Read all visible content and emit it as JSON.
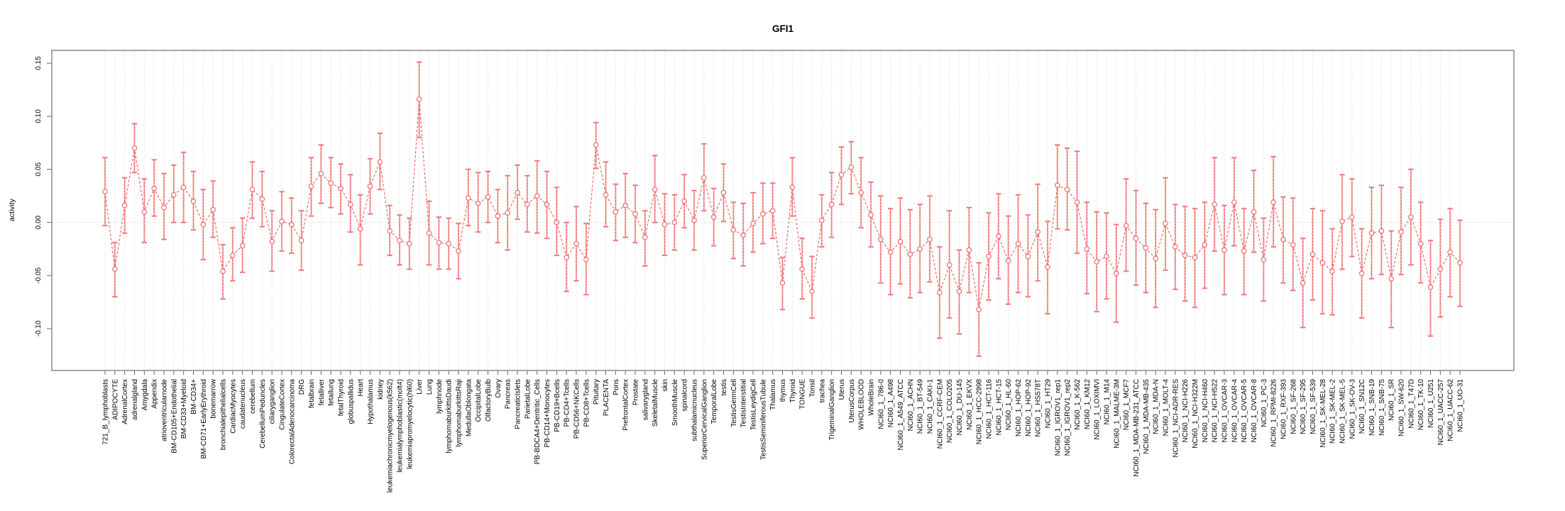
{
  "chart_data": {
    "type": "line",
    "title": "GFI1",
    "ylabel": "activity",
    "xlabel": "",
    "ylim": [
      -0.13,
      0.16
    ],
    "ytick_values": [
      0.15,
      0.1,
      0.05,
      0.0,
      -0.05,
      -0.1
    ],
    "ytick_labels": [
      "0.15",
      "0.10",
      "0.05",
      "0.00",
      "-0.05",
      "-0.10"
    ],
    "grid": "vertical dotted gridline per category; dotted horizontal line at 0",
    "legend_position": "none",
    "marker": "open-circle",
    "line_style": "dashed",
    "colors": {
      "series": "#ee5f5f",
      "errorbar_light": "#f5abab",
      "gridline": "#d9d9d9",
      "zero_line": "#d0d0d0",
      "plot_border": "#8a8a8a",
      "tick": "#666666"
    },
    "categories": [
      "721_B_lymphoblasts",
      "ADIPOCYTE",
      "AdrenalCortex",
      "adrenalgland",
      "Amygdala",
      "Appendix",
      "atrioventricularnode",
      "BM-CD105+Endothelial",
      "BM-CD33+Myeloid",
      "BM-CD34+",
      "BM-CD71+EarlyErythroid",
      "bonemarrow",
      "bronchialepithelialcells",
      "CardiacMyocytes",
      "caudatenucleus",
      "cerebellum",
      "CerebellumPeduncles",
      "ciliaryganglion",
      "CingulateCortex",
      "ColorectalAdenocarcinoma",
      "DRG",
      "fetalbrain",
      "fetalliver",
      "fetallung",
      "fetalThyroid",
      "globuspallidus",
      "Heart",
      "Hypothalamus",
      "kidney",
      "leukemiachronicmyelogenous(k562)",
      "leukemialymphoblastic(molt4)",
      "leukemiapromyelocytic(hl60)",
      "Liver",
      "Lung",
      "lymphnode",
      "lymphomaburkittsDaudi",
      "lymphomaburkittsRaji",
      "MedullaOblongata",
      "OccipitalLobe",
      "OlfactoryBulb",
      "Ovary",
      "Pancreas",
      "PancreaticIslets",
      "ParietalLobe",
      "PB-BDCA4+Dentritic_Cells",
      "PB-CD14+Monocytes",
      "PB-CD19+Bcells",
      "PB-CD4+Tcells",
      "PB-CD56+NKCells",
      "PB-CD8+Tcells",
      "Pituitary",
      "PLACENTA",
      "Pons",
      "PrefrontalCortex",
      "Prostate",
      "salivarygland",
      "SkeletalMuscle",
      "skin",
      "SmoothMuscle",
      "spinalcord",
      "subthalamicnucleus",
      "SuperiorCervicalGanglion",
      "TemporalLobe",
      "testis",
      "TestisGermCell",
      "TestisInterstitial",
      "TestisLeydigCell",
      "TestisSeminiferousTubule",
      "Thalamus",
      "thymus",
      "Thyroid",
      "TONGUE",
      "Tonsil",
      "trachea",
      "TrigeminalGanglion",
      "Uterus",
      "UterusCorpus",
      "WHOLEBLOOD",
      "WholeBrain",
      "NCI60_1_786-0",
      "NCI60_1_A498",
      "NCI60_1_A549_ATCC",
      "NCI60_1_ACHN",
      "NCI60_1_BT-549",
      "NCI60_1_CAKI-1",
      "NCI60_1_CCRF-CEM",
      "NCI60_1_COLO205",
      "NCI60_1_DU-145",
      "NCI60_1_EKVX",
      "NCI60_1_HCC-2998",
      "NCI60_1_HCT-116",
      "NCI60_1_HCT-15",
      "NCI60_1_HL-60",
      "NCI60_1_HOP-62",
      "NCI60_1_HOP-92",
      "NCI60_1_HS578T",
      "NCI60_1_HT29",
      "NCI60_1_IGROV1_rep1",
      "NCI60_1_IGROV1_rep2",
      "NCI60_1_K-562",
      "NCI60_1_KM12",
      "NCI60_1_LOXIMVI",
      "NCI60_1_M14",
      "NCI60_1_MALME-3M",
      "NCI60_1_MCF7",
      "NCI60_1_MDA-MB-231_ATCC",
      "NCI60_1_MDA-MB-435",
      "NCI60_1_MDA-N",
      "NCI60_1_MOLT-4",
      "NCI60_1_NCI-ADR-RES",
      "NCI60_1_NCI-H226",
      "NCI60_1_NCI-H322M",
      "NCI60_1_NCI-H460",
      "NCI60_1_NCI-H522",
      "NCI60_1_OVCAR-3",
      "NCI60_1_OVCAR-4",
      "NCI60_1_OVCAR-5",
      "NCI60_1_OVCAR-8",
      "NCI60_1_PC-3",
      "NCI60_1_RPMI-8226",
      "NCI60_1_RXF-393",
      "NCI60_1_SF-268",
      "NCI60_1_SF-295",
      "NCI60_1_SF-539",
      "NCI60_1_SK-MEL-28",
      "NCI60_1_SK-MEL-2",
      "NCI60_1_SK-MEL-5",
      "NCI60_1_SK-OV-3",
      "NCI60_1_SN12C",
      "NCI60_1_SNB-19",
      "NCI60_1_SNB-75",
      "NCI60_1_SR",
      "NCI60_1_SW-620",
      "NCI60_1_T47D",
      "NCI60_1_TK-10",
      "NCI60_1_U251",
      "NCI60_1_UACC-257",
      "NCI60_1_UACC-62",
      "NCI60_1_UO-31"
    ],
    "series": [
      {
        "name": "activity",
        "values": [
          0.029,
          -0.044,
          0.016,
          0.07,
          0.01,
          0.032,
          0.014,
          0.026,
          0.033,
          0.02,
          -0.002,
          0.012,
          -0.046,
          -0.031,
          -0.022,
          0.031,
          0.022,
          -0.018,
          0.001,
          -0.002,
          -0.017,
          0.034,
          0.046,
          0.037,
          0.032,
          0.017,
          -0.006,
          0.034,
          0.057,
          -0.008,
          -0.017,
          -0.02,
          0.116,
          -0.01,
          -0.019,
          -0.02,
          -0.027,
          0.023,
          0.018,
          0.024,
          0.006,
          0.009,
          0.028,
          0.017,
          0.025,
          0.017,
          0.0,
          -0.033,
          -0.02,
          -0.035,
          0.073,
          0.026,
          0.01,
          0.016,
          0.008,
          -0.014,
          0.031,
          -0.002,
          0.0,
          0.02,
          0.002,
          0.042,
          0.005,
          0.028,
          -0.007,
          -0.012,
          -0.001,
          0.008,
          0.011,
          -0.057,
          0.033,
          -0.044,
          -0.065,
          0.002,
          0.017,
          0.045,
          0.052,
          0.028,
          0.007,
          -0.016,
          -0.028,
          -0.018,
          -0.03,
          -0.025,
          -0.016,
          -0.066,
          -0.04,
          -0.065,
          -0.026,
          -0.082,
          -0.032,
          -0.013,
          -0.036,
          -0.02,
          -0.032,
          -0.009,
          -0.042,
          0.035,
          0.031,
          0.019,
          -0.025,
          -0.037,
          -0.032,
          -0.048,
          -0.003,
          -0.015,
          -0.024,
          -0.034,
          -0.001,
          -0.023,
          -0.031,
          -0.033,
          -0.021,
          0.017,
          -0.026,
          0.019,
          -0.027,
          0.01,
          -0.035,
          0.019,
          -0.016,
          -0.021,
          -0.057,
          -0.03,
          -0.038,
          -0.046,
          0.001,
          0.005,
          -0.048,
          -0.01,
          -0.008,
          -0.053,
          -0.009,
          0.005,
          -0.02,
          -0.061,
          -0.044,
          -0.028,
          -0.038
        ],
        "ci_low": [
          -0.003,
          -0.07,
          -0.01,
          0.047,
          -0.019,
          0.006,
          -0.016,
          0.0,
          0.0,
          -0.007,
          -0.035,
          -0.014,
          -0.072,
          -0.055,
          -0.047,
          0.004,
          -0.004,
          -0.046,
          -0.027,
          -0.029,
          -0.045,
          0.006,
          0.018,
          0.014,
          0.008,
          -0.009,
          -0.04,
          0.008,
          0.031,
          -0.031,
          -0.04,
          -0.044,
          0.08,
          -0.04,
          -0.044,
          -0.044,
          -0.053,
          -0.003,
          -0.009,
          0.0,
          -0.019,
          -0.026,
          0.003,
          -0.009,
          -0.01,
          -0.015,
          -0.031,
          -0.065,
          -0.055,
          -0.068,
          0.051,
          -0.004,
          -0.017,
          -0.014,
          -0.019,
          -0.041,
          0.0,
          -0.031,
          -0.026,
          -0.005,
          -0.026,
          0.011,
          -0.022,
          0.001,
          -0.034,
          -0.041,
          -0.028,
          -0.02,
          -0.015,
          -0.082,
          0.006,
          -0.072,
          -0.09,
          -0.023,
          -0.014,
          0.017,
          0.027,
          -0.005,
          -0.023,
          -0.057,
          -0.068,
          -0.058,
          -0.071,
          -0.066,
          -0.056,
          -0.109,
          -0.09,
          -0.105,
          -0.066,
          -0.126,
          -0.073,
          -0.053,
          -0.077,
          -0.066,
          -0.07,
          -0.055,
          -0.086,
          -0.006,
          -0.007,
          -0.029,
          -0.067,
          -0.084,
          -0.072,
          -0.094,
          -0.046,
          -0.059,
          -0.066,
          -0.08,
          -0.045,
          -0.063,
          -0.074,
          -0.08,
          -0.062,
          -0.027,
          -0.068,
          -0.022,
          -0.068,
          -0.028,
          -0.074,
          -0.023,
          -0.057,
          -0.064,
          -0.099,
          -0.073,
          -0.086,
          -0.087,
          -0.044,
          -0.032,
          -0.09,
          -0.053,
          -0.049,
          -0.099,
          -0.049,
          -0.04,
          -0.057,
          -0.107,
          -0.089,
          -0.07,
          -0.079
        ],
        "ci_high": [
          0.061,
          -0.019,
          0.042,
          0.093,
          0.041,
          0.059,
          0.046,
          0.054,
          0.066,
          0.048,
          0.031,
          0.039,
          -0.021,
          -0.005,
          0.004,
          0.057,
          0.048,
          0.011,
          0.029,
          0.023,
          0.011,
          0.061,
          0.073,
          0.061,
          0.055,
          0.045,
          0.026,
          0.06,
          0.084,
          0.016,
          0.007,
          0.004,
          0.151,
          0.02,
          0.005,
          0.004,
          -0.001,
          0.05,
          0.047,
          0.048,
          0.031,
          0.044,
          0.054,
          0.044,
          0.058,
          0.048,
          0.033,
          0.0,
          0.015,
          -0.001,
          0.094,
          0.057,
          0.036,
          0.046,
          0.035,
          0.011,
          0.063,
          0.027,
          0.026,
          0.045,
          0.03,
          0.074,
          0.032,
          0.055,
          0.019,
          0.018,
          0.028,
          0.037,
          0.037,
          -0.033,
          0.061,
          -0.015,
          -0.032,
          0.026,
          0.047,
          0.071,
          0.076,
          0.061,
          0.038,
          0.025,
          0.013,
          0.023,
          0.012,
          0.017,
          0.025,
          -0.023,
          0.011,
          -0.026,
          0.014,
          -0.038,
          0.009,
          0.027,
          0.006,
          0.026,
          0.007,
          0.036,
          0.001,
          0.073,
          0.07,
          0.067,
          0.019,
          0.01,
          0.009,
          -0.002,
          0.041,
          0.03,
          0.018,
          0.012,
          0.042,
          0.017,
          0.015,
          0.013,
          0.019,
          0.061,
          0.016,
          0.061,
          0.013,
          0.049,
          0.004,
          0.062,
          0.024,
          0.023,
          -0.015,
          0.013,
          0.011,
          -0.006,
          0.045,
          0.041,
          -0.006,
          0.033,
          0.035,
          -0.008,
          0.033,
          0.05,
          0.019,
          -0.017,
          0.003,
          0.013,
          0.002
        ]
      }
    ]
  }
}
